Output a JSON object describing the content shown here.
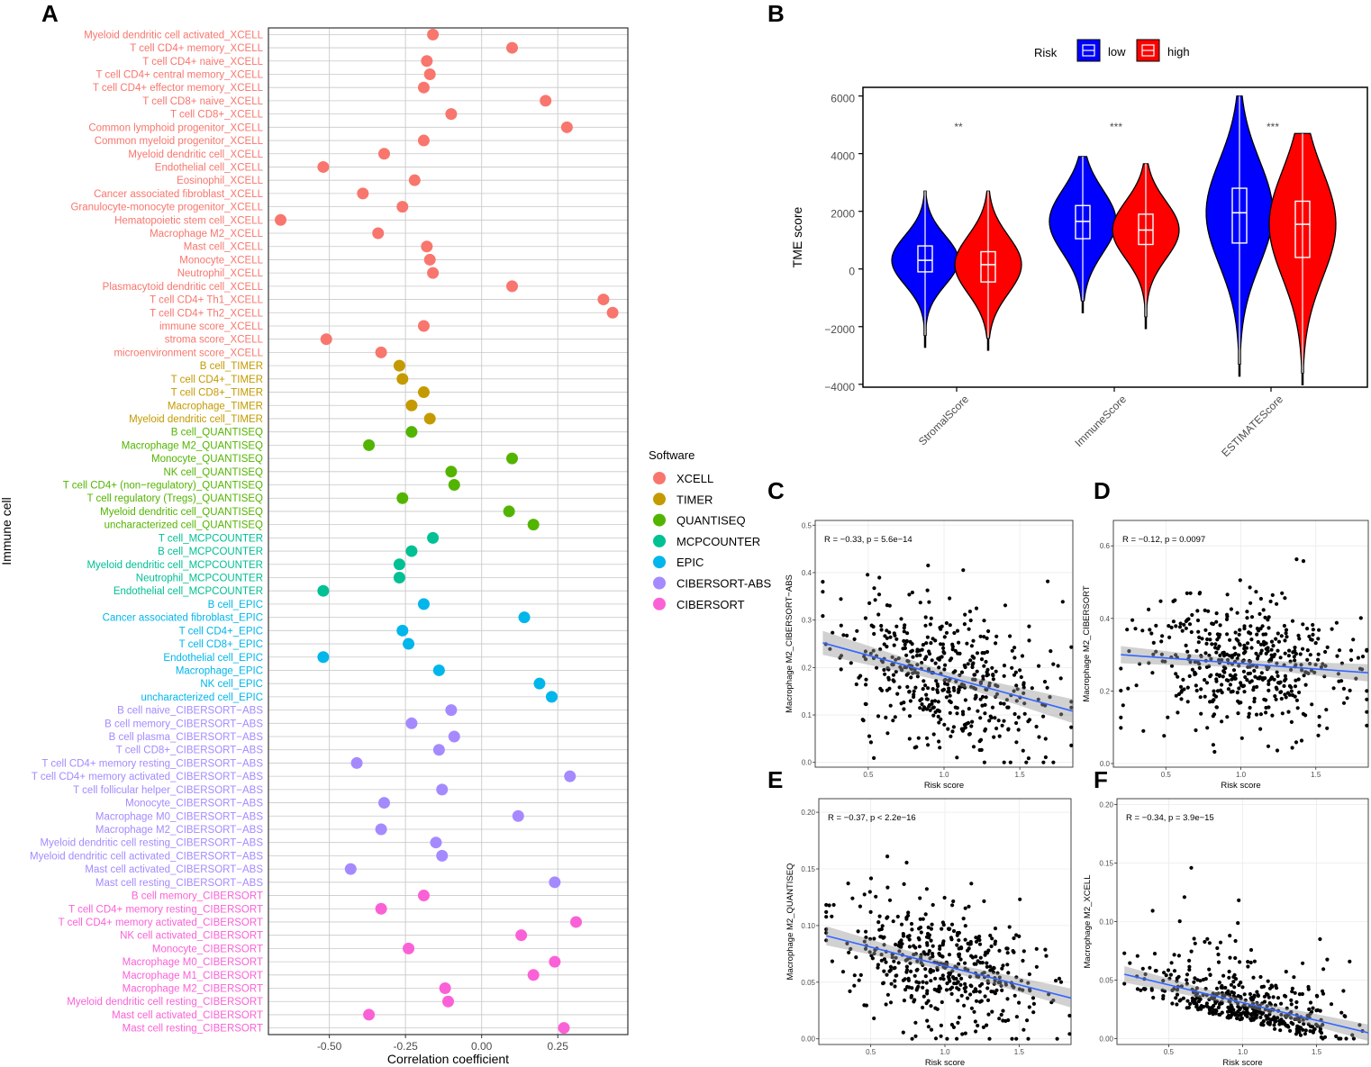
{
  "chart_data": [
    {
      "panel": "A",
      "type": "scatter",
      "xlabel": "Correlation coefficient",
      "ylabel": "Immune cell",
      "xlim": [
        -0.7,
        0.48
      ],
      "xticks": [
        -0.5,
        -0.25,
        0.0,
        0.25
      ],
      "xtick_labels": [
        "-0.50",
        "-0.25",
        "0.00",
        "0.25"
      ],
      "legend_title": "Software",
      "groups": [
        {
          "name": "XCELL",
          "color": "#F8766D"
        },
        {
          "name": "TIMER",
          "color": "#C49A00"
        },
        {
          "name": "QUANTISEQ",
          "color": "#53B400"
        },
        {
          "name": "MCPCOUNTER",
          "color": "#00C094"
        },
        {
          "name": "EPIC",
          "color": "#00B6EB"
        },
        {
          "name": "CIBERSORT-ABS",
          "color": "#A58AFF"
        },
        {
          "name": "CIBERSORT",
          "color": "#FB61D7"
        }
      ],
      "points": [
        {
          "label": "Myeloid dendritic cell activated_XCELL",
          "group": 0,
          "value": -0.16
        },
        {
          "label": "T cell CD4+ memory_XCELL",
          "group": 0,
          "value": 0.1
        },
        {
          "label": "T cell CD4+ naive_XCELL",
          "group": 0,
          "value": -0.18
        },
        {
          "label": "T cell CD4+ central memory_XCELL",
          "group": 0,
          "value": -0.17
        },
        {
          "label": "T cell CD4+ effector memory_XCELL",
          "group": 0,
          "value": -0.19
        },
        {
          "label": "T cell CD8+ naive_XCELL",
          "group": 0,
          "value": 0.21
        },
        {
          "label": "T cell CD8+_XCELL",
          "group": 0,
          "value": -0.1
        },
        {
          "label": "Common lymphoid progenitor_XCELL",
          "group": 0,
          "value": 0.28
        },
        {
          "label": "Common myeloid progenitor_XCELL",
          "group": 0,
          "value": -0.19
        },
        {
          "label": "Myeloid dendritic cell_XCELL",
          "group": 0,
          "value": -0.32
        },
        {
          "label": "Endothelial cell_XCELL",
          "group": 0,
          "value": -0.52
        },
        {
          "label": "Eosinophil_XCELL",
          "group": 0,
          "value": -0.22
        },
        {
          "label": "Cancer associated fibroblast_XCELL",
          "group": 0,
          "value": -0.39
        },
        {
          "label": "Granulocyte-monocyte progenitor_XCELL",
          "group": 0,
          "value": -0.26
        },
        {
          "label": "Hematopoietic stem cell_XCELL",
          "group": 0,
          "value": -0.66
        },
        {
          "label": "Macrophage M2_XCELL",
          "group": 0,
          "value": -0.34
        },
        {
          "label": "Mast cell_XCELL",
          "group": 0,
          "value": -0.18
        },
        {
          "label": "Monocyte_XCELL",
          "group": 0,
          "value": -0.17
        },
        {
          "label": "Neutrophil_XCELL",
          "group": 0,
          "value": -0.16
        },
        {
          "label": "Plasmacytoid dendritic cell_XCELL",
          "group": 0,
          "value": 0.1
        },
        {
          "label": "T cell CD4+ Th1_XCELL",
          "group": 0,
          "value": 0.4
        },
        {
          "label": "T cell CD4+ Th2_XCELL",
          "group": 0,
          "value": 0.43
        },
        {
          "label": "immune score_XCELL",
          "group": 0,
          "value": -0.19
        },
        {
          "label": "stroma score_XCELL",
          "group": 0,
          "value": -0.51
        },
        {
          "label": "microenvironment score_XCELL",
          "group": 0,
          "value": -0.33
        },
        {
          "label": "B cell_TIMER",
          "group": 1,
          "value": -0.27
        },
        {
          "label": "T cell CD4+_TIMER",
          "group": 1,
          "value": -0.26
        },
        {
          "label": "T cell CD8+_TIMER",
          "group": 1,
          "value": -0.19
        },
        {
          "label": "Macrophage_TIMER",
          "group": 1,
          "value": -0.23
        },
        {
          "label": "Myeloid dendritic cell_TIMER",
          "group": 1,
          "value": -0.17
        },
        {
          "label": "B cell_QUANTISEQ",
          "group": 2,
          "value": -0.23
        },
        {
          "label": "Macrophage M2_QUANTISEQ",
          "group": 2,
          "value": -0.37
        },
        {
          "label": "Monocyte_QUANTISEQ",
          "group": 2,
          "value": 0.1
        },
        {
          "label": "NK cell_QUANTISEQ",
          "group": 2,
          "value": -0.1
        },
        {
          "label": "T cell CD4+ (non−regulatory)_QUANTISEQ",
          "group": 2,
          "value": -0.09
        },
        {
          "label": "T cell regulatory (Tregs)_QUANTISEQ",
          "group": 2,
          "value": -0.26
        },
        {
          "label": "Myeloid dendritic cell_QUANTISEQ",
          "group": 2,
          "value": 0.09
        },
        {
          "label": "uncharacterized cell_QUANTISEQ",
          "group": 2,
          "value": 0.17
        },
        {
          "label": "T cell_MCPCOUNTER",
          "group": 3,
          "value": -0.16
        },
        {
          "label": "B cell_MCPCOUNTER",
          "group": 3,
          "value": -0.23
        },
        {
          "label": "Myeloid dendritic cell_MCPCOUNTER",
          "group": 3,
          "value": -0.27
        },
        {
          "label": "Neutrophil_MCPCOUNTER",
          "group": 3,
          "value": -0.27
        },
        {
          "label": "Endothelial cell_MCPCOUNTER",
          "group": 3,
          "value": -0.52
        },
        {
          "label": "B cell_EPIC",
          "group": 4,
          "value": -0.19
        },
        {
          "label": "Cancer associated fibroblast_EPIC",
          "group": 4,
          "value": 0.14
        },
        {
          "label": "T cell CD4+_EPIC",
          "group": 4,
          "value": -0.26
        },
        {
          "label": "T cell CD8+_EPIC",
          "group": 4,
          "value": -0.24
        },
        {
          "label": "Endothelial cell_EPIC",
          "group": 4,
          "value": -0.52
        },
        {
          "label": "Macrophage_EPIC",
          "group": 4,
          "value": -0.14
        },
        {
          "label": "NK cell_EPIC",
          "group": 4,
          "value": 0.19
        },
        {
          "label": "uncharacterized cell_EPIC",
          "group": 4,
          "value": 0.23
        },
        {
          "label": "B cell naive_CIBERSORT−ABS",
          "group": 5,
          "value": -0.1
        },
        {
          "label": "B cell memory_CIBERSORT−ABS",
          "group": 5,
          "value": -0.23
        },
        {
          "label": "B cell plasma_CIBERSORT−ABS",
          "group": 5,
          "value": -0.09
        },
        {
          "label": "T cell CD8+_CIBERSORT−ABS",
          "group": 5,
          "value": -0.14
        },
        {
          "label": "T cell CD4+ memory resting_CIBERSORT−ABS",
          "group": 5,
          "value": -0.41
        },
        {
          "label": "T cell CD4+ memory activated_CIBERSORT−ABS",
          "group": 5,
          "value": 0.29
        },
        {
          "label": "T cell follicular helper_CIBERSORT−ABS",
          "group": 5,
          "value": -0.13
        },
        {
          "label": "Monocyte_CIBERSORT−ABS",
          "group": 5,
          "value": -0.32
        },
        {
          "label": "Macrophage M0_CIBERSORT−ABS",
          "group": 5,
          "value": 0.12
        },
        {
          "label": "Macrophage M2_CIBERSORT−ABS",
          "group": 5,
          "value": -0.33
        },
        {
          "label": "Myeloid dendritic cell resting_CIBERSORT−ABS",
          "group": 5,
          "value": -0.15
        },
        {
          "label": "Myeloid dendritic cell activated_CIBERSORT−ABS",
          "group": 5,
          "value": -0.13
        },
        {
          "label": "Mast cell activated_CIBERSORT−ABS",
          "group": 5,
          "value": -0.43
        },
        {
          "label": "Mast cell resting_CIBERSORT−ABS",
          "group": 5,
          "value": 0.24
        },
        {
          "label": "B cell memory_CIBERSORT",
          "group": 6,
          "value": -0.19
        },
        {
          "label": "T cell CD4+ memory resting_CIBERSORT",
          "group": 6,
          "value": -0.33
        },
        {
          "label": "T cell CD4+ memory activated_CIBERSORT",
          "group": 6,
          "value": 0.31
        },
        {
          "label": "NK cell activated_CIBERSORT",
          "group": 6,
          "value": 0.13
        },
        {
          "label": "Monocyte_CIBERSORT",
          "group": 6,
          "value": -0.24
        },
        {
          "label": "Macrophage M0_CIBERSORT",
          "group": 6,
          "value": 0.24
        },
        {
          "label": "Macrophage M1_CIBERSORT",
          "group": 6,
          "value": 0.17
        },
        {
          "label": "Macrophage M2_CIBERSORT",
          "group": 6,
          "value": -0.12
        },
        {
          "label": "Myeloid dendritic cell resting_CIBERSORT",
          "group": 6,
          "value": -0.11
        },
        {
          "label": "Mast cell activated_CIBERSORT",
          "group": 6,
          "value": -0.37
        },
        {
          "label": "Mast cell resting_CIBERSORT",
          "group": 6,
          "value": 0.27
        }
      ]
    },
    {
      "panel": "B",
      "type": "violin",
      "ylabel": "TME score",
      "ylim": [
        -4100,
        6300
      ],
      "yticks": [
        -4000,
        -2000,
        0,
        2000,
        4000,
        6000
      ],
      "ytick_labels": [
        "−4000",
        "−2000",
        "0",
        "2000",
        "4000",
        "6000"
      ],
      "legend_title": "Risk",
      "series": [
        {
          "name": "low",
          "color": "#0000FF"
        },
        {
          "name": "high",
          "color": "#FF0000"
        }
      ],
      "categories": [
        {
          "name": "StromalScore",
          "significance": "**",
          "low": {
            "min": -2300,
            "q1": -100,
            "median": 300,
            "q3": 800,
            "max": 2700
          },
          "high": {
            "min": -2400,
            "q1": -450,
            "median": 150,
            "q3": 600,
            "max": 2700
          }
        },
        {
          "name": "ImmuneScore",
          "significance": "***",
          "low": {
            "min": -1100,
            "q1": 1050,
            "median": 1650,
            "q3": 2200,
            "max": 3900
          },
          "high": {
            "min": -1650,
            "q1": 850,
            "median": 1350,
            "q3": 1900,
            "max": 3650
          }
        },
        {
          "name": "ESTIMATEScore",
          "significance": "***",
          "low": {
            "min": -3300,
            "q1": 900,
            "median": 1950,
            "q3": 2800,
            "max": 6000
          },
          "high": {
            "min": -3600,
            "q1": 400,
            "median": 1550,
            "q3": 2350,
            "max": 4700
          }
        }
      ]
    },
    {
      "panel": "C",
      "type": "scatter",
      "xlabel": "Risk score",
      "ylabel": "Macrophage M2_CIBERSORT−ABS",
      "stat": "R = −0.33, p = 5.6e−14",
      "xlim": [
        0.15,
        1.85
      ],
      "ylim": [
        -0.01,
        0.51
      ],
      "xticks": [
        0.5,
        1.0,
        1.5
      ],
      "xtick_labels": [
        "0.5",
        "1.0",
        "1.5"
      ],
      "yticks": [
        0.0,
        0.1,
        0.2,
        0.3,
        0.4,
        0.5
      ],
      "ytick_labels": [
        "0.0",
        "0.1",
        "0.2",
        "0.3",
        "0.4",
        "0.5"
      ],
      "fit": {
        "x0": 0.2,
        "y0": 0.252,
        "x1": 1.85,
        "y1": 0.108,
        "band": 0.018
      },
      "n": 480,
      "x_mean": 1.0,
      "x_sd": 0.33,
      "y_min": 0.0,
      "y_max": 0.5,
      "y_noise": 0.075,
      "seed": 11
    },
    {
      "panel": "D",
      "type": "scatter",
      "xlabel": "Risk score",
      "ylabel": "Macrophage M2_CIBERSORT",
      "stat": "R = −0.12, p = 0.0097",
      "xlim": [
        0.15,
        1.85
      ],
      "ylim": [
        -0.01,
        0.67
      ],
      "xticks": [
        0.5,
        1.0,
        1.5
      ],
      "xtick_labels": [
        "0.5",
        "1.0",
        "1.5"
      ],
      "yticks": [
        0.0,
        0.2,
        0.4,
        0.6
      ],
      "ytick_labels": [
        "0.0",
        "0.2",
        "0.4",
        "0.6"
      ],
      "fit": {
        "x0": 0.2,
        "y0": 0.3,
        "x1": 1.85,
        "y1": 0.25,
        "band": 0.017
      },
      "n": 480,
      "x_mean": 1.0,
      "x_sd": 0.33,
      "y_min": 0.02,
      "y_max": 0.65,
      "y_noise": 0.09,
      "seed": 23
    },
    {
      "panel": "E",
      "type": "scatter",
      "xlabel": "Risk score",
      "ylabel": "Macrophage M2_QUANTISEQ",
      "stat": "R = −0.37, p < 2.2e−16",
      "xlim": [
        0.15,
        1.85
      ],
      "ylim": [
        -0.005,
        0.212
      ],
      "xticks": [
        0.5,
        1.0,
        1.5
      ],
      "xtick_labels": [
        "0.5",
        "1.0",
        "1.5"
      ],
      "yticks": [
        0.0,
        0.05,
        0.1,
        0.15,
        0.2
      ],
      "ytick_labels": [
        "0.00",
        "0.05",
        "0.10",
        "0.15",
        "0.20"
      ],
      "fit": {
        "x0": 0.2,
        "y0": 0.091,
        "x1": 1.85,
        "y1": 0.036,
        "band": 0.006
      },
      "n": 480,
      "x_mean": 1.0,
      "x_sd": 0.33,
      "y_min": 0.0,
      "y_max": 0.205,
      "y_noise": 0.027,
      "seed": 37
    },
    {
      "panel": "F",
      "type": "scatter",
      "xlabel": "Risk score",
      "ylabel": "Macrophage M2_XCELL",
      "stat": "R = −0.34, p = 3.9e−15",
      "xlim": [
        0.15,
        1.85
      ],
      "ylim": [
        -0.005,
        0.205
      ],
      "xticks": [
        0.5,
        1.0,
        1.5
      ],
      "xtick_labels": [
        "0.5",
        "1.0",
        "1.5"
      ],
      "yticks": [
        0.0,
        0.05,
        0.1,
        0.15,
        0.2
      ],
      "ytick_labels": [
        "0.00",
        "0.05",
        "0.10",
        "0.15",
        "0.20"
      ],
      "fit": {
        "x0": 0.2,
        "y0": 0.055,
        "x1": 1.85,
        "y1": 0.005,
        "band": 0.005
      },
      "n": 480,
      "x_mean": 1.0,
      "x_sd": 0.33,
      "y_min": 0.0,
      "y_max": 0.2,
      "y_noise": 0.022,
      "seed": 53,
      "y_skew": true
    }
  ]
}
